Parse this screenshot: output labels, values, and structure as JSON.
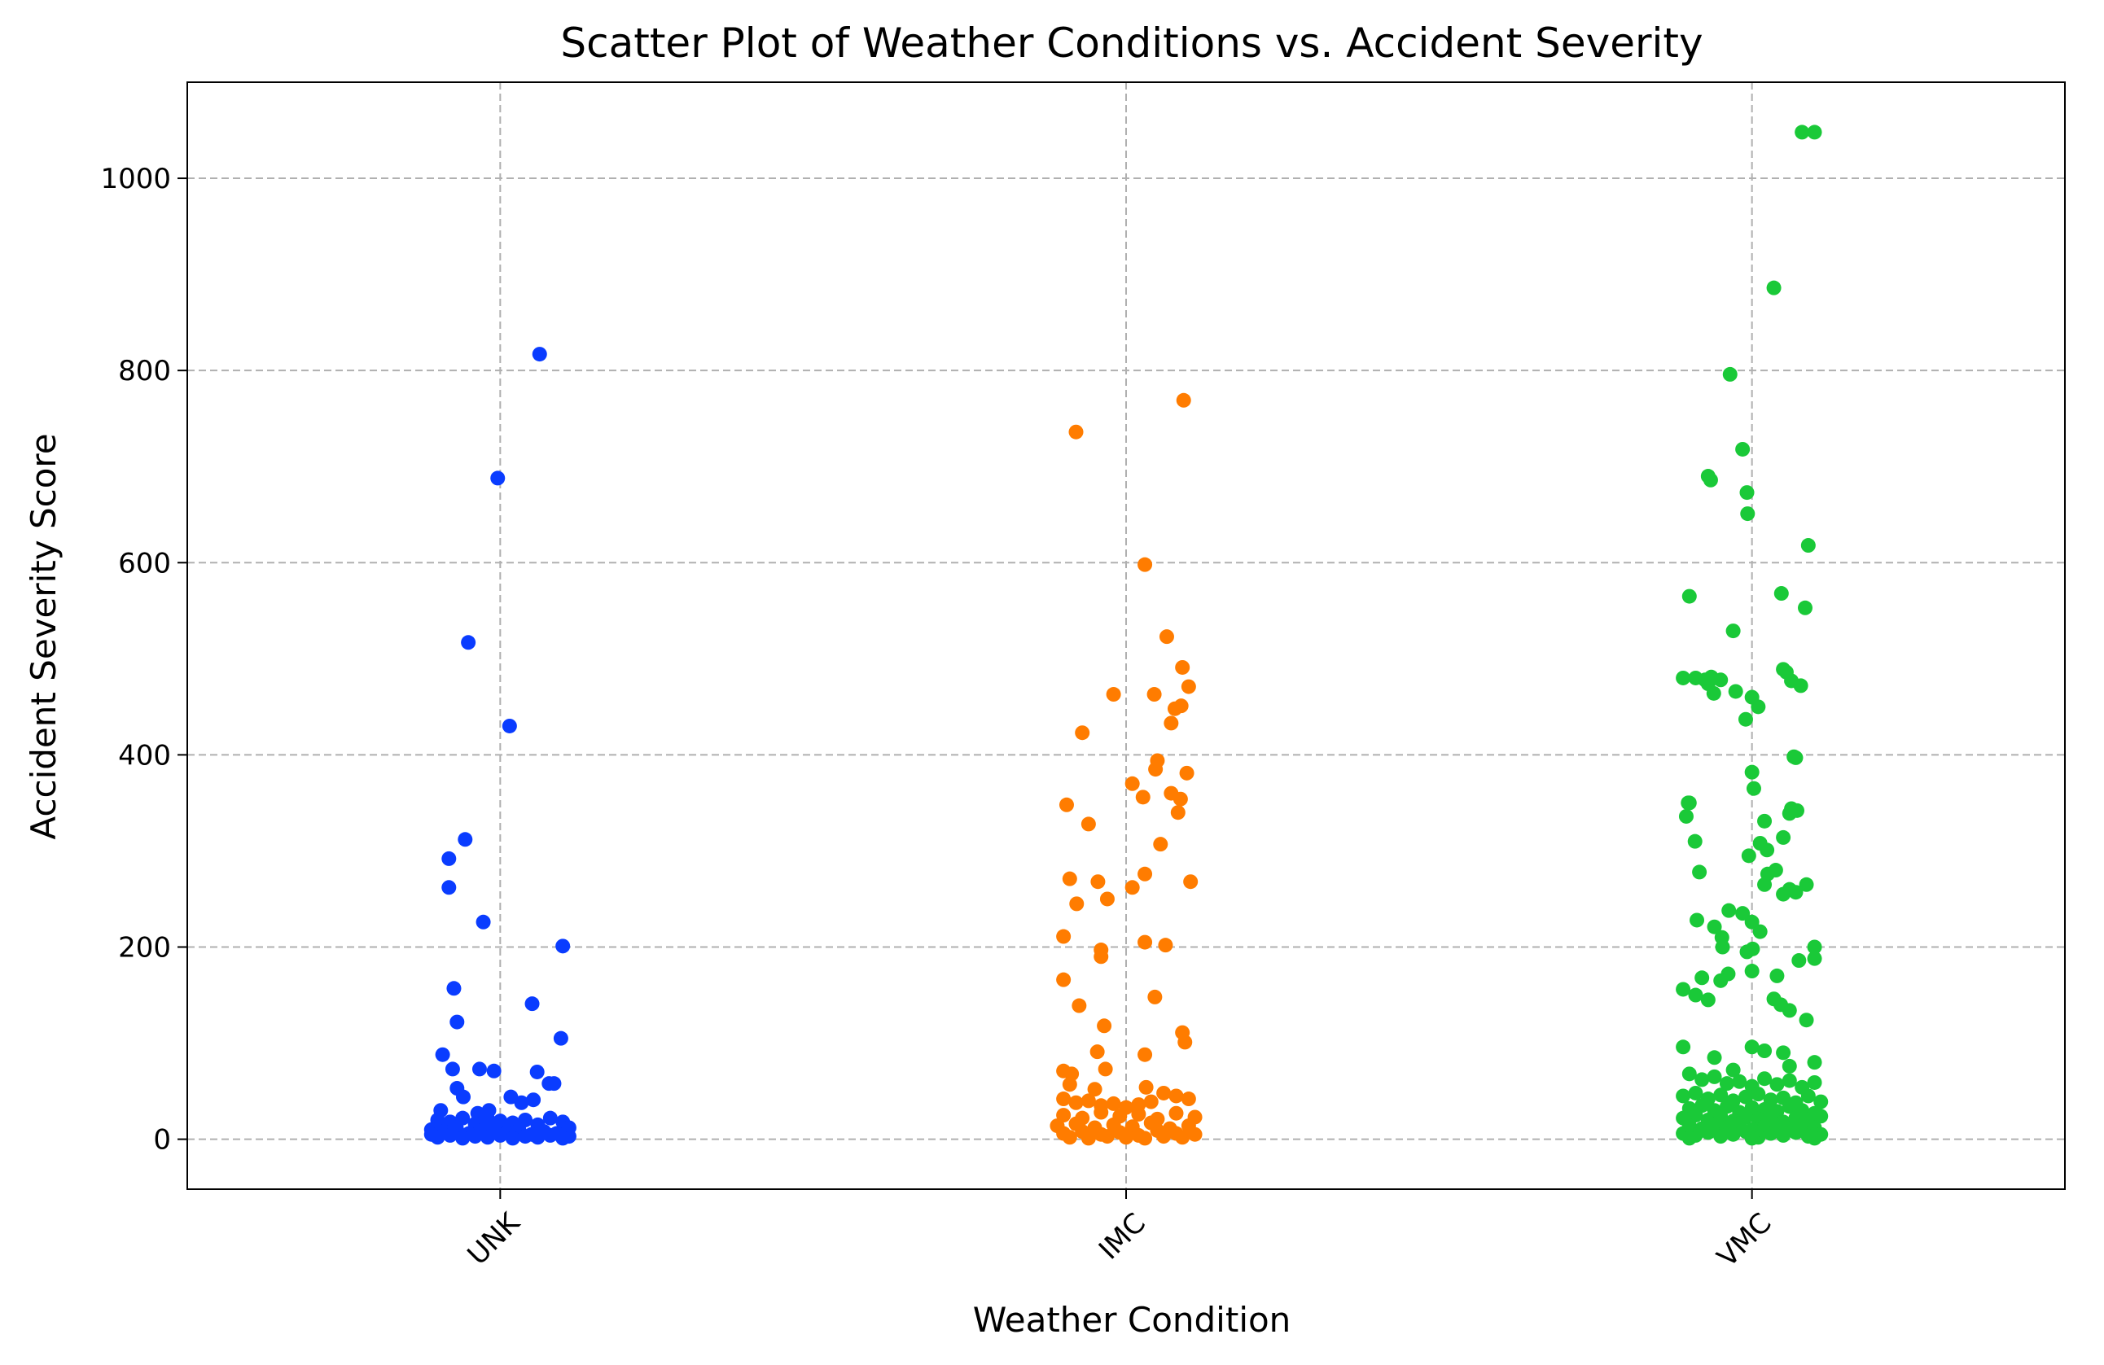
{
  "chart_data": {
    "type": "scatter",
    "title": "Scatter Plot of Weather Conditions vs. Accident Severity",
    "xlabel": "Weather Condition",
    "ylabel": "Accident Severity Score",
    "categories": [
      "UNK",
      "IMC",
      "VMC"
    ],
    "x_tick_rotation_deg": 45,
    "ylim": [
      -52,
      1100
    ],
    "xlim": [
      -0.5,
      2.5
    ],
    "yticks": [
      0,
      200,
      400,
      600,
      800,
      1000
    ],
    "grid": true,
    "grid_style": "dashed",
    "legend": "none",
    "jitter": 0.12,
    "series": [
      {
        "category": "UNK",
        "color": "#0a3cff",
        "points": [
          [
            0.063,
            817
          ],
          [
            -0.004,
            688
          ],
          [
            -0.051,
            517
          ],
          [
            0.015,
            430
          ],
          [
            -0.056,
            312
          ],
          [
            -0.082,
            292
          ],
          [
            -0.082,
            262
          ],
          [
            -0.027,
            226
          ],
          [
            0.1,
            201
          ],
          [
            -0.074,
            157
          ],
          [
            0.051,
            141
          ],
          [
            -0.069,
            122
          ],
          [
            0.097,
            105
          ],
          [
            -0.092,
            88
          ],
          [
            -0.076,
            73
          ],
          [
            -0.033,
            73
          ],
          [
            -0.01,
            71
          ],
          [
            0.059,
            70
          ],
          [
            0.078,
            58
          ],
          [
            0.086,
            58
          ],
          [
            -0.069,
            53
          ],
          [
            -0.059,
            44
          ],
          [
            0.017,
            44
          ],
          [
            0.034,
            38
          ],
          [
            0.053,
            41
          ],
          [
            -0.036,
            27
          ],
          [
            -0.018,
            30
          ],
          [
            -0.095,
            30
          ],
          [
            -0.1,
            20
          ],
          [
            -0.08,
            18
          ],
          [
            -0.06,
            22
          ],
          [
            -0.04,
            16
          ],
          [
            -0.02,
            21
          ],
          [
            0.0,
            19
          ],
          [
            0.02,
            17
          ],
          [
            0.04,
            20
          ],
          [
            0.06,
            15
          ],
          [
            0.08,
            22
          ],
          [
            0.1,
            18
          ],
          [
            0.11,
            12
          ],
          [
            -0.11,
            10
          ],
          [
            -0.09,
            8
          ],
          [
            -0.07,
            12
          ],
          [
            -0.05,
            6
          ],
          [
            -0.03,
            9
          ],
          [
            -0.01,
            11
          ],
          [
            0.01,
            7
          ],
          [
            0.03,
            10
          ],
          [
            0.05,
            5
          ],
          [
            0.07,
            8
          ],
          [
            0.09,
            6
          ],
          [
            0.11,
            3
          ],
          [
            -0.1,
            2
          ],
          [
            -0.08,
            4
          ],
          [
            -0.06,
            1
          ],
          [
            -0.04,
            3
          ],
          [
            -0.02,
            2
          ],
          [
            0.0,
            4
          ],
          [
            0.02,
            1
          ],
          [
            0.04,
            3
          ],
          [
            0.06,
            2
          ],
          [
            0.08,
            4
          ],
          [
            0.1,
            1
          ],
          [
            -0.11,
            5
          ]
        ]
      },
      {
        "category": "IMC",
        "color": "#ff7c00",
        "points": [
          [
            0.092,
            769
          ],
          [
            -0.08,
            736
          ],
          [
            0.03,
            598
          ],
          [
            0.065,
            523
          ],
          [
            0.09,
            491
          ],
          [
            0.1,
            471
          ],
          [
            0.045,
            463
          ],
          [
            -0.02,
            463
          ],
          [
            0.088,
            451
          ],
          [
            0.078,
            448
          ],
          [
            0.072,
            433
          ],
          [
            -0.07,
            423
          ],
          [
            0.05,
            394
          ],
          [
            0.047,
            385
          ],
          [
            0.097,
            381
          ],
          [
            0.01,
            370
          ],
          [
            0.072,
            360
          ],
          [
            0.087,
            354
          ],
          [
            0.027,
            356
          ],
          [
            -0.095,
            348
          ],
          [
            0.083,
            340
          ],
          [
            -0.06,
            328
          ],
          [
            0.055,
            307
          ],
          [
            -0.09,
            271
          ],
          [
            0.103,
            268
          ],
          [
            -0.045,
            268
          ],
          [
            0.03,
            276
          ],
          [
            0.01,
            262
          ],
          [
            -0.03,
            250
          ],
          [
            -0.079,
            245
          ],
          [
            -0.1,
            211
          ],
          [
            0.03,
            205
          ],
          [
            0.063,
            202
          ],
          [
            -0.04,
            197
          ],
          [
            -0.04,
            190
          ],
          [
            -0.1,
            166
          ],
          [
            0.046,
            148
          ],
          [
            -0.075,
            139
          ],
          [
            -0.035,
            118
          ],
          [
            0.09,
            111
          ],
          [
            0.094,
            101
          ],
          [
            -0.046,
            91
          ],
          [
            0.03,
            88
          ],
          [
            -0.033,
            73
          ],
          [
            -0.1,
            71
          ],
          [
            -0.087,
            68
          ],
          [
            -0.09,
            57
          ],
          [
            0.032,
            54
          ],
          [
            -0.05,
            52
          ],
          [
            0.06,
            48
          ],
          [
            0.08,
            45
          ],
          [
            -0.1,
            42
          ],
          [
            -0.08,
            38
          ],
          [
            -0.06,
            40
          ],
          [
            -0.04,
            35
          ],
          [
            -0.02,
            37
          ],
          [
            0.0,
            33
          ],
          [
            0.02,
            36
          ],
          [
            0.04,
            39
          ],
          [
            0.1,
            42
          ],
          [
            -0.1,
            25
          ],
          [
            -0.07,
            22
          ],
          [
            -0.04,
            28
          ],
          [
            -0.01,
            24
          ],
          [
            0.02,
            26
          ],
          [
            0.05,
            21
          ],
          [
            0.08,
            27
          ],
          [
            0.11,
            23
          ],
          [
            -0.11,
            14
          ],
          [
            -0.08,
            16
          ],
          [
            -0.05,
            12
          ],
          [
            -0.02,
            15
          ],
          [
            0.01,
            13
          ],
          [
            0.04,
            17
          ],
          [
            0.07,
            11
          ],
          [
            0.1,
            14
          ],
          [
            -0.1,
            6
          ],
          [
            -0.07,
            8
          ],
          [
            -0.04,
            5
          ],
          [
            -0.01,
            7
          ],
          [
            0.02,
            4
          ],
          [
            0.05,
            9
          ],
          [
            0.08,
            6
          ],
          [
            0.11,
            5
          ],
          [
            -0.09,
            2
          ],
          [
            -0.06,
            1
          ],
          [
            -0.03,
            3
          ],
          [
            0.0,
            2
          ],
          [
            0.03,
            1
          ],
          [
            0.06,
            3
          ],
          [
            0.09,
            2
          ]
        ]
      },
      {
        "category": "VMC",
        "color": "#1ac938",
        "points": [
          [
            0.08,
            1048
          ],
          [
            0.1,
            1048
          ],
          [
            0.035,
            886
          ],
          [
            -0.035,
            796
          ],
          [
            -0.015,
            718
          ],
          [
            -0.07,
            690
          ],
          [
            -0.066,
            686
          ],
          [
            -0.008,
            673
          ],
          [
            -0.007,
            651
          ],
          [
            0.09,
            618
          ],
          [
            0.047,
            568
          ],
          [
            -0.1,
            565
          ],
          [
            0.085,
            553
          ],
          [
            -0.03,
            529
          ],
          [
            0.05,
            489
          ],
          [
            0.055,
            486
          ],
          [
            -0.065,
            481
          ],
          [
            -0.11,
            480
          ],
          [
            -0.09,
            480
          ],
          [
            -0.075,
            478
          ],
          [
            -0.05,
            478
          ],
          [
            0.063,
            477
          ],
          [
            0.078,
            472
          ],
          [
            -0.07,
            474
          ],
          [
            -0.026,
            466
          ],
          [
            -0.061,
            464
          ],
          [
            0.0,
            460
          ],
          [
            0.01,
            450
          ],
          [
            -0.01,
            437
          ],
          [
            0.067,
            398
          ],
          [
            0.07,
            397
          ],
          [
            0.0,
            382
          ],
          [
            0.003,
            365
          ],
          [
            -0.102,
            350
          ],
          [
            -0.1,
            350
          ],
          [
            0.063,
            344
          ],
          [
            0.072,
            342
          ],
          [
            0.06,
            339
          ],
          [
            -0.105,
            336
          ],
          [
            0.02,
            331
          ],
          [
            0.05,
            314
          ],
          [
            -0.091,
            310
          ],
          [
            0.013,
            308
          ],
          [
            0.024,
            301
          ],
          [
            -0.005,
            295
          ],
          [
            0.038,
            280
          ],
          [
            0.025,
            276
          ],
          [
            -0.084,
            278
          ],
          [
            0.02,
            265
          ],
          [
            0.087,
            265
          ],
          [
            0.06,
            260
          ],
          [
            0.07,
            257
          ],
          [
            0.05,
            255
          ],
          [
            -0.037,
            238
          ],
          [
            -0.015,
            235
          ],
          [
            0.0,
            226
          ],
          [
            -0.088,
            228
          ],
          [
            -0.06,
            221
          ],
          [
            0.013,
            216
          ],
          [
            -0.048,
            210
          ],
          [
            -0.047,
            200
          ],
          [
            0.001,
            198
          ],
          [
            -0.008,
            195
          ],
          [
            0.1,
            200
          ],
          [
            0.1,
            188
          ],
          [
            0.075,
            186
          ],
          [
            -0.038,
            172
          ],
          [
            0.0,
            175
          ],
          [
            0.04,
            170
          ],
          [
            -0.08,
            168
          ],
          [
            -0.05,
            165
          ],
          [
            -0.11,
            156
          ],
          [
            -0.09,
            150
          ],
          [
            -0.07,
            145
          ],
          [
            0.035,
            146
          ],
          [
            0.046,
            140
          ],
          [
            0.06,
            134
          ],
          [
            0.087,
            124
          ],
          [
            -0.11,
            96
          ],
          [
            0.0,
            96
          ],
          [
            0.02,
            92
          ],
          [
            0.05,
            90
          ],
          [
            -0.06,
            85
          ],
          [
            0.1,
            80
          ],
          [
            0.06,
            76
          ],
          [
            -0.03,
            72
          ],
          [
            -0.1,
            68
          ],
          [
            -0.08,
            62
          ],
          [
            -0.06,
            65
          ],
          [
            -0.04,
            58
          ],
          [
            -0.02,
            60
          ],
          [
            0.0,
            55
          ],
          [
            0.02,
            63
          ],
          [
            0.04,
            57
          ],
          [
            0.06,
            61
          ],
          [
            0.08,
            54
          ],
          [
            0.1,
            59
          ],
          [
            -0.11,
            45
          ],
          [
            -0.09,
            48
          ],
          [
            -0.07,
            42
          ],
          [
            -0.05,
            46
          ],
          [
            -0.03,
            40
          ],
          [
            -0.01,
            44
          ],
          [
            0.01,
            47
          ],
          [
            0.03,
            41
          ],
          [
            0.05,
            43
          ],
          [
            0.07,
            38
          ],
          [
            0.09,
            45
          ],
          [
            0.11,
            39
          ],
          [
            -0.1,
            32
          ],
          [
            -0.08,
            35
          ],
          [
            -0.06,
            30
          ],
          [
            -0.04,
            34
          ],
          [
            -0.02,
            28
          ],
          [
            0.0,
            33
          ],
          [
            0.02,
            31
          ],
          [
            0.04,
            29
          ],
          [
            0.06,
            34
          ],
          [
            0.08,
            30
          ],
          [
            0.1,
            27
          ],
          [
            -0.11,
            22
          ],
          [
            -0.09,
            25
          ],
          [
            -0.07,
            20
          ],
          [
            -0.05,
            24
          ],
          [
            -0.03,
            19
          ],
          [
            -0.01,
            23
          ],
          [
            0.01,
            21
          ],
          [
            0.03,
            25
          ],
          [
            0.05,
            18
          ],
          [
            0.07,
            22
          ],
          [
            0.09,
            20
          ],
          [
            0.11,
            24
          ],
          [
            -0.1,
            14
          ],
          [
            -0.08,
            11
          ],
          [
            -0.06,
            15
          ],
          [
            -0.04,
            12
          ],
          [
            -0.02,
            16
          ],
          [
            0.0,
            10
          ],
          [
            0.02,
            13
          ],
          [
            0.04,
            15
          ],
          [
            0.06,
            11
          ],
          [
            0.08,
            14
          ],
          [
            0.1,
            12
          ],
          [
            -0.11,
            6
          ],
          [
            -0.09,
            4
          ],
          [
            -0.07,
            7
          ],
          [
            -0.05,
            3
          ],
          [
            -0.03,
            5
          ],
          [
            -0.01,
            8
          ],
          [
            0.01,
            2
          ],
          [
            0.03,
            6
          ],
          [
            0.05,
            4
          ],
          [
            0.07,
            7
          ],
          [
            0.09,
            3
          ],
          [
            0.11,
            5
          ],
          [
            -0.1,
            1
          ],
          [
            0.0,
            1
          ],
          [
            0.1,
            1
          ]
        ]
      }
    ]
  }
}
